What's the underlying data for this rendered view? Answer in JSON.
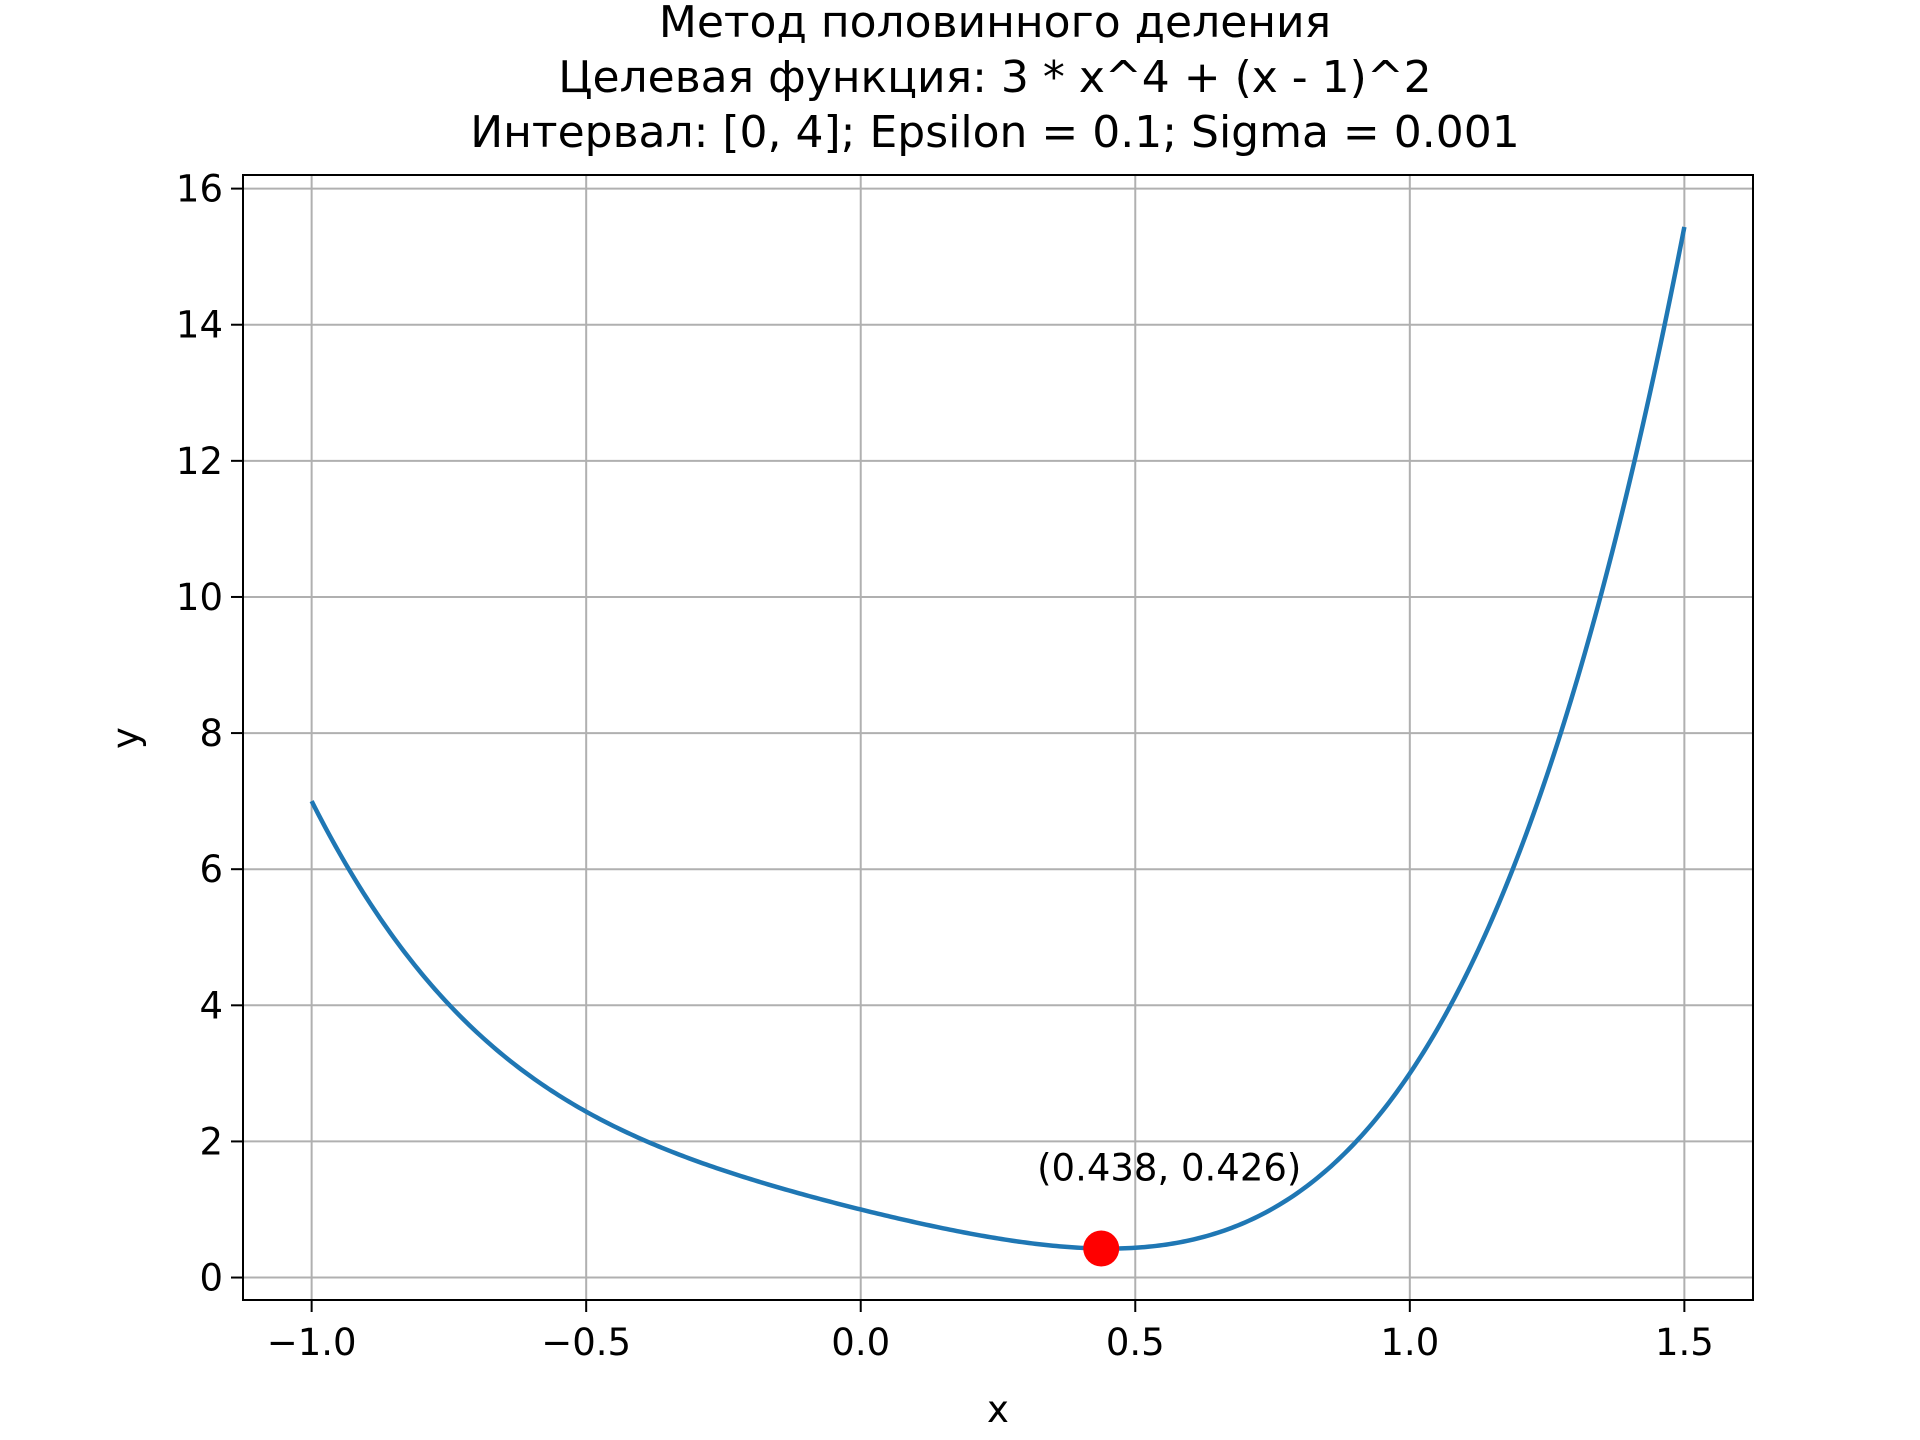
{
  "chart_data": {
    "type": "line",
    "title_lines": [
      "Метод половинного деления",
      "Целевая функция: 3 * x^4 + (x - 1)^2",
      "Интервал: [0, 4]; Epsilon = 0.1; Sigma = 0.001"
    ],
    "xlabel": "x",
    "ylabel": "y",
    "xlim": [
      -1.125,
      1.625
    ],
    "ylim": [
      -0.33,
      16.2
    ],
    "x_ticks": [
      -1.0,
      -0.5,
      0.0,
      0.5,
      1.0,
      1.5
    ],
    "x_tick_labels": [
      "−1.0",
      "−0.5",
      "0.0",
      "0.5",
      "1.0",
      "1.5"
    ],
    "y_ticks": [
      0,
      2,
      4,
      6,
      8,
      10,
      12,
      14,
      16
    ],
    "y_tick_labels": [
      "0",
      "2",
      "4",
      "6",
      "8",
      "10",
      "12",
      "14",
      "16"
    ],
    "grid": true,
    "series": [
      {
        "function": "3 * x^4 + (x - 1)^2",
        "x_range": [
          -1.0,
          1.5
        ],
        "color": "#1f77b4"
      }
    ],
    "marker": {
      "x": 0.438,
      "y": 0.426,
      "color": "#ff0000",
      "label": "(0.438, 0.426)"
    }
  }
}
